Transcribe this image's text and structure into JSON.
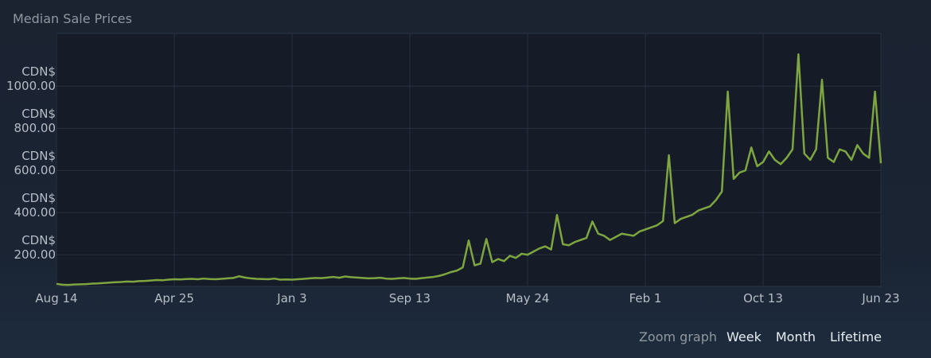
{
  "chart_data": {
    "type": "line",
    "title": "Median Sale Prices",
    "categories": [
      "Aug 14",
      null,
      null,
      null,
      null,
      null,
      null,
      null,
      null,
      null,
      null,
      null,
      null,
      null,
      null,
      null,
      null,
      null,
      null,
      null,
      "Apr 25",
      null,
      null,
      null,
      null,
      null,
      null,
      null,
      null,
      null,
      null,
      null,
      null,
      null,
      null,
      null,
      null,
      null,
      null,
      null,
      "Jan 3",
      null,
      null,
      null,
      null,
      null,
      null,
      null,
      null,
      null,
      null,
      null,
      null,
      null,
      null,
      null,
      null,
      null,
      null,
      null,
      "Sep 13",
      null,
      null,
      null,
      null,
      null,
      null,
      null,
      null,
      null,
      null,
      null,
      null,
      null,
      null,
      null,
      null,
      null,
      null,
      null,
      "May 24",
      null,
      null,
      null,
      null,
      null,
      null,
      null,
      null,
      null,
      null,
      null,
      null,
      null,
      null,
      null,
      null,
      null,
      null,
      null,
      "Feb 1",
      null,
      null,
      null,
      null,
      null,
      null,
      null,
      null,
      null,
      null,
      null,
      null,
      null,
      null,
      null,
      null,
      null,
      null,
      null,
      "Oct 13",
      null,
      null,
      null,
      null,
      null,
      null,
      null,
      null,
      null,
      null,
      null,
      null,
      null,
      null,
      null,
      null,
      null,
      null,
      null,
      "Jun 23"
    ],
    "series": [
      {
        "name": "Median Sale Price",
        "color": "#7ea540",
        "values": [
          62,
          58,
          57,
          59,
          60,
          61,
          63,
          64,
          66,
          68,
          70,
          71,
          73,
          72,
          75,
          76,
          78,
          80,
          79,
          82,
          84,
          83,
          85,
          86,
          84,
          87,
          85,
          84,
          86,
          88,
          90,
          98,
          92,
          88,
          86,
          85,
          84,
          87,
          82,
          83,
          82,
          84,
          86,
          88,
          90,
          89,
          92,
          95,
          91,
          97,
          94,
          92,
          90,
          88,
          89,
          91,
          87,
          86,
          88,
          90,
          87,
          86,
          89,
          92,
          95,
          100,
          108,
          118,
          125,
          140,
          268,
          150,
          158,
          275,
          165,
          180,
          170,
          195,
          185,
          205,
          200,
          215,
          230,
          240,
          225,
          389,
          250,
          245,
          260,
          270,
          280,
          358,
          300,
          290,
          270,
          285,
          300,
          295,
          290,
          310,
          320,
          330,
          340,
          360,
          672,
          350,
          370,
          380,
          390,
          410,
          420,
          430,
          460,
          500,
          974,
          560,
          590,
          600,
          709,
          620,
          640,
          690,
          650,
          630,
          660,
          700,
          1151,
          680,
          650,
          700,
          1030,
          660,
          640,
          700,
          690,
          650,
          720,
          680,
          660,
          974,
          634
        ]
      }
    ],
    "ylim": [
      50,
      1250
    ],
    "yticks": [
      {
        "value": 200,
        "label": "CDN$ 200.00"
      },
      {
        "value": 400,
        "label": "CDN$ 400.00"
      },
      {
        "value": 600,
        "label": "CDN$ 600.00"
      },
      {
        "value": 800,
        "label": "CDN$ 800.00"
      },
      {
        "value": 1000,
        "label": "CDN$ 1000.00"
      }
    ],
    "grid": true
  },
  "zoom": {
    "label": "Zoom graph",
    "options": [
      "Week",
      "Month",
      "Lifetime"
    ]
  }
}
